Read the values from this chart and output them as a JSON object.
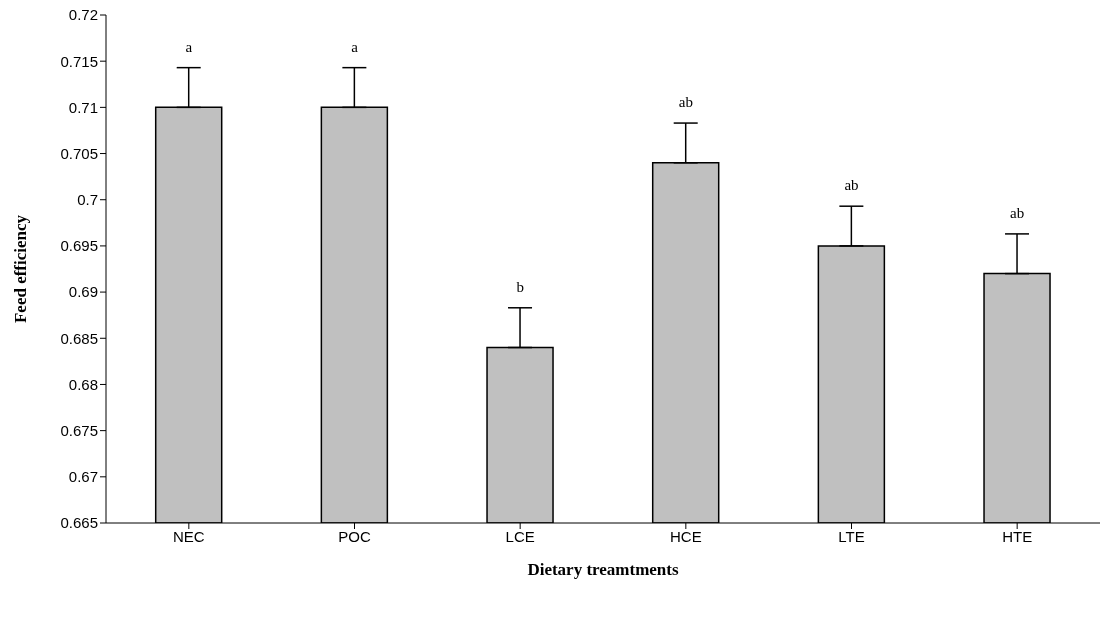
{
  "chart_data": {
    "type": "bar",
    "xlabel": "Dietary treamtments",
    "ylabel": "Feed efficiency",
    "categories": [
      "NEC",
      "POC",
      "LCE",
      "HCE",
      "LTE",
      "HTE"
    ],
    "values": [
      0.71,
      0.71,
      0.684,
      0.704,
      0.695,
      0.692
    ],
    "errors": [
      [
        0.71,
        0.7143
      ],
      [
        0.71,
        0.7143
      ],
      [
        0.684,
        0.6883
      ],
      [
        0.704,
        0.7083
      ],
      [
        0.695,
        0.6993
      ],
      [
        0.692,
        0.6963
      ]
    ],
    "color": "#c0c0c0",
    "ylim": [
      0.665,
      0.72
    ],
    "yticks": [
      0.665,
      0.67,
      0.675,
      0.68,
      0.685,
      0.69,
      0.695,
      0.7,
      0.705,
      0.71,
      0.715,
      0.72
    ],
    "grid": false,
    "legend": false,
    "annotations": [
      "a",
      "a",
      "b",
      "ab",
      "ab",
      "ab"
    ]
  }
}
